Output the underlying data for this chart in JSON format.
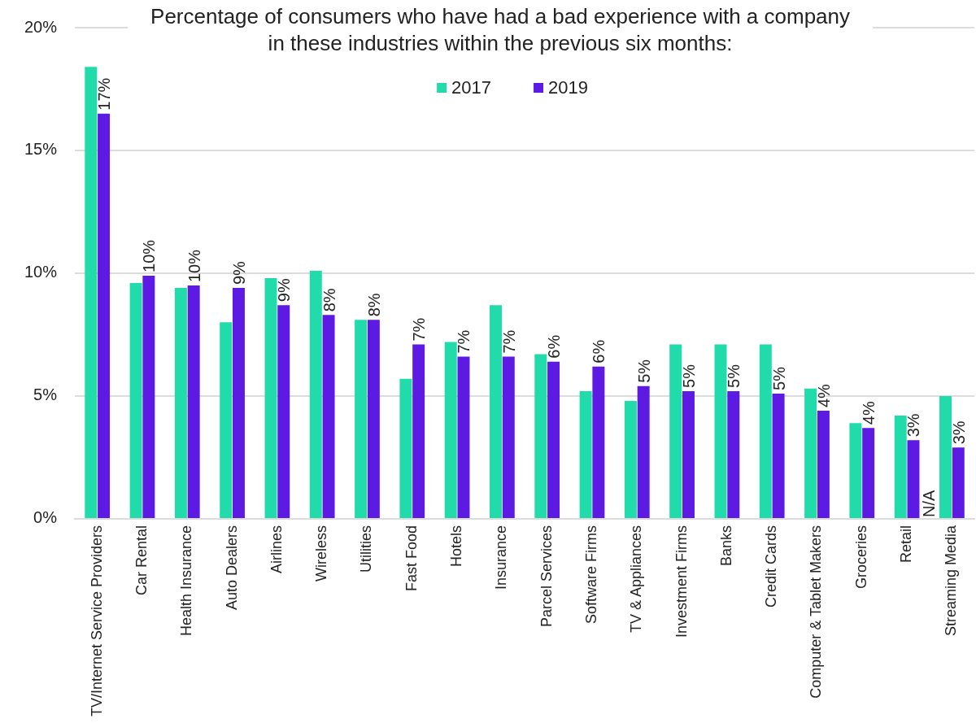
{
  "chart_data": {
    "type": "bar",
    "title": "Percentage of consumers who have had a bad experience with a company in these industries within the previous six months:",
    "categories": [
      "TV/Internet Service Providers",
      "Car Rental",
      "Health Insurance",
      "Auto Dealers",
      "Airlines",
      "Wireless",
      "Utilities",
      "Fast Food",
      "Hotels",
      "Insurance",
      "Parcel Services",
      "Software Firms",
      "TV & Appliances",
      "Investment Firms",
      "Banks",
      "Credit Cards",
      "Computer & Tablet Makers",
      "Groceries",
      "Retail",
      "Streaming Media"
    ],
    "series": [
      {
        "name": "2017",
        "color": "#21dcaa",
        "values": [
          18.4,
          9.6,
          9.4,
          8.0,
          9.8,
          10.1,
          8.1,
          5.7,
          7.2,
          8.7,
          6.7,
          5.2,
          4.8,
          7.1,
          7.1,
          7.1,
          5.3,
          3.9,
          4.2,
          5.0
        ]
      },
      {
        "name": "2019",
        "color": "#5c1ae3",
        "values": [
          16.5,
          9.9,
          9.5,
          9.4,
          8.7,
          8.3,
          8.1,
          7.1,
          6.6,
          6.6,
          6.4,
          6.2,
          5.4,
          5.2,
          5.2,
          5.1,
          4.4,
          3.7,
          3.2,
          2.9
        ],
        "value_labels": [
          "17%",
          "10%",
          "10%",
          "9%",
          "9%",
          "8%",
          "8%",
          "7%",
          "7%",
          "7%",
          "6%",
          "6%",
          "5%",
          "5%",
          "5%",
          "5%",
          "4%",
          "4%",
          "3%",
          "3%"
        ]
      }
    ],
    "ylim": [
      0,
      20
    ],
    "yticks": [
      {
        "value": 0,
        "label": "0%"
      },
      {
        "value": 5,
        "label": "5%"
      },
      {
        "value": 10,
        "label": "10%"
      },
      {
        "value": 15,
        "label": "15%"
      },
      {
        "value": 20,
        "label": "20%"
      }
    ],
    "grid": "y",
    "legend": "top",
    "annotations": [
      {
        "text": "N/A",
        "x": "Streaming Media",
        "y": 0
      }
    ]
  }
}
